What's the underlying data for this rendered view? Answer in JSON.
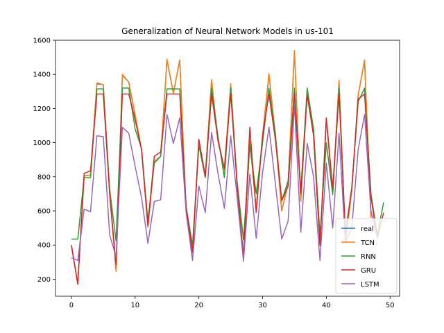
{
  "chart_data": {
    "type": "line",
    "title": "Generalization of Neural Network Models in us-101",
    "xlabel": "",
    "ylabel": "",
    "xlim": [
      -2.5,
      51.5
    ],
    "ylim": [
      100,
      1600
    ],
    "xticks": [
      0,
      10,
      20,
      30,
      40,
      50
    ],
    "yticks": [
      200,
      400,
      600,
      800,
      1000,
      1200,
      1400,
      1600
    ],
    "grid": false,
    "legend": "lower-right",
    "series": [
      {
        "name": "real",
        "color": "#1f77b4",
        "x": [
          0,
          1,
          2,
          3,
          4,
          5,
          6,
          7,
          8,
          9,
          10,
          11,
          12,
          13,
          14,
          15,
          16,
          17,
          18,
          19,
          20,
          21,
          22,
          23,
          24,
          25,
          26,
          27,
          28,
          29,
          30,
          31,
          32,
          33,
          34,
          35,
          36,
          37,
          38,
          39,
          40,
          41,
          42,
          43,
          44,
          45,
          46,
          47
        ],
        "y": [
          395,
          175,
          805,
          810,
          1345,
          1340,
          700,
          250,
          1395,
          1355,
          1160,
          960,
          505,
          890,
          920,
          1485,
          1290,
          1485,
          600,
          350,
          1010,
          805,
          1365,
          1010,
          840,
          1340,
          750,
          320,
          1010,
          610,
          1040,
          1400,
          1040,
          600,
          760,
          1535,
          660,
          1310,
          1060,
          395,
          1140,
          705,
          1360,
          420,
          720,
          1280,
          1480,
          560
        ]
      },
      {
        "name": "TCN",
        "color": "#ff7f0e",
        "x": [
          0,
          1,
          2,
          3,
          4,
          5,
          6,
          7,
          8,
          9,
          10,
          11,
          12,
          13,
          14,
          15,
          16,
          17,
          18,
          19,
          20,
          21,
          22,
          23,
          24,
          25,
          26,
          27,
          28,
          29,
          30,
          31,
          32,
          33,
          34,
          35,
          36,
          37,
          38,
          39,
          40,
          41,
          42,
          43,
          44,
          45,
          46,
          47
        ],
        "y": [
          395,
          175,
          805,
          810,
          1350,
          1340,
          700,
          245,
          1400,
          1355,
          1165,
          960,
          505,
          890,
          920,
          1490,
          1290,
          1485,
          600,
          350,
          1010,
          805,
          1370,
          1010,
          840,
          1345,
          750,
          320,
          1010,
          610,
          1040,
          1405,
          1040,
          600,
          760,
          1540,
          655,
          1310,
          1060,
          395,
          1140,
          705,
          1365,
          420,
          720,
          1280,
          1485,
          560
        ]
      },
      {
        "name": "RNN",
        "color": "#2ca02c",
        "x": [
          0,
          1,
          2,
          3,
          4,
          5,
          6,
          7,
          8,
          9,
          10,
          11,
          12,
          13,
          14,
          15,
          16,
          17,
          18,
          19,
          20,
          21,
          22,
          23,
          24,
          25,
          26,
          27,
          28,
          29,
          30,
          31,
          32,
          33,
          34,
          35,
          36,
          37,
          38,
          39,
          40,
          41,
          42,
          43,
          44,
          45,
          46,
          47,
          48,
          49
        ],
        "y": [
          435,
          435,
          795,
          795,
          1315,
          1315,
          725,
          425,
          1320,
          1320,
          1080,
          965,
          540,
          880,
          920,
          1315,
          1315,
          1315,
          625,
          400,
          985,
          795,
          1320,
          1035,
          795,
          1320,
          770,
          430,
          985,
          700,
          1000,
          1320,
          1055,
          660,
          775,
          1320,
          720,
          1320,
          1080,
          455,
          1000,
          695,
          1320,
          460,
          735,
          1240,
          1320,
          700,
          460,
          650
        ]
      },
      {
        "name": "GRU",
        "color": "#d62728",
        "x": [
          0,
          1,
          2,
          3,
          4,
          5,
          6,
          7,
          8,
          9,
          10,
          11,
          12,
          13,
          14,
          15,
          16,
          17,
          18,
          19,
          20,
          21,
          22,
          23,
          24,
          25,
          26,
          27,
          28,
          29,
          30,
          31,
          32,
          33,
          34,
          35,
          36,
          37,
          38,
          39,
          40,
          41,
          42,
          43,
          44,
          45,
          46,
          47,
          48,
          49
        ],
        "y": [
          400,
          170,
          820,
          835,
          1285,
          1285,
          700,
          285,
          1285,
          1285,
          1135,
          960,
          515,
          920,
          945,
          1285,
          1285,
          1285,
          625,
          360,
          1020,
          800,
          1285,
          1015,
          850,
          1285,
          755,
          330,
          1090,
          590,
          1045,
          1285,
          1020,
          660,
          745,
          1285,
          700,
          1280,
          1040,
          400,
          1145,
          730,
          1285,
          470,
          735,
          1255,
          1285,
          680,
          440,
          590
        ]
      },
      {
        "name": "LSTM",
        "color": "#9467bd",
        "x": [
          0,
          1,
          2,
          3,
          4,
          5,
          6,
          7,
          8,
          9,
          10,
          11,
          12,
          13,
          14,
          15,
          16,
          17,
          18,
          19,
          20,
          21,
          22,
          23,
          24,
          25,
          26,
          27,
          28,
          29,
          30,
          31,
          32,
          33,
          34,
          35,
          36,
          37,
          38,
          39,
          40,
          41,
          42,
          43,
          44,
          45,
          46,
          47,
          48
        ],
        "y": [
          325,
          310,
          610,
          595,
          1040,
          1035,
          460,
          330,
          1090,
          1055,
          860,
          680,
          410,
          655,
          665,
          1165,
          995,
          1145,
          590,
          310,
          745,
          590,
          1060,
          820,
          615,
          1040,
          680,
          305,
          815,
          440,
          825,
          1090,
          760,
          435,
          540,
          1225,
          475,
          995,
          800,
          310,
          880,
          500,
          1055,
          415,
          500,
          960,
          1165,
          600,
          440
        ]
      }
    ]
  }
}
